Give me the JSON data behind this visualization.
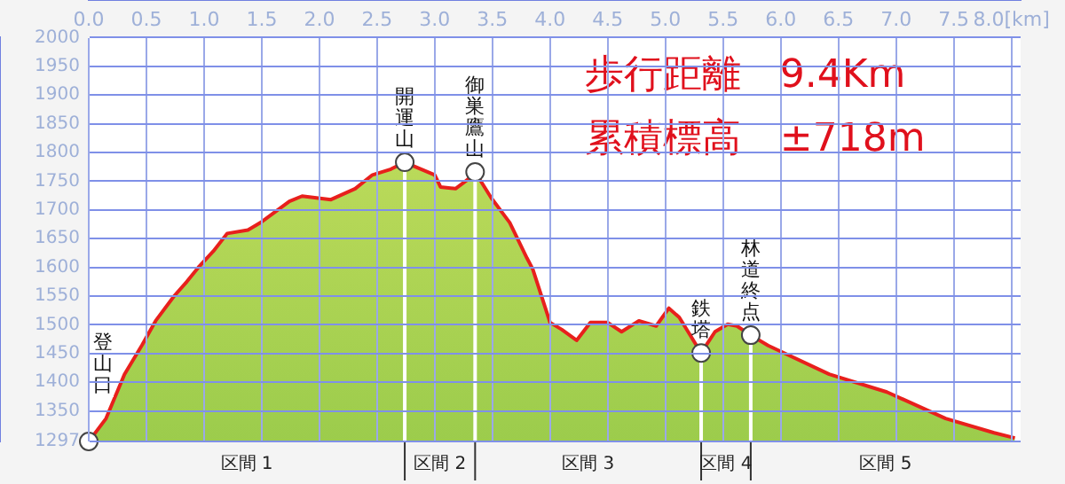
{
  "chart_data": {
    "type": "area",
    "title": "歩行距離　9.4Km",
    "subtitle": "累積標高　±718m",
    "x": [
      0,
      0.15,
      0.31,
      0.46,
      0.58,
      0.74,
      0.85,
      0.95,
      1.08,
      1.2,
      1.38,
      1.49,
      1.74,
      1.85,
      2.1,
      2.31,
      2.46,
      2.62,
      2.74,
      3.0,
      3.05,
      3.18,
      3.28,
      3.35,
      3.49,
      3.65,
      3.8,
      3.85,
      4.0,
      4.1,
      4.23,
      4.35,
      4.5,
      4.62,
      4.77,
      4.92,
      5.03,
      5.12,
      5.31,
      5.43,
      5.54,
      5.62,
      5.74,
      5.89,
      6.42,
      6.92,
      7.43,
      7.85,
      8.03
    ],
    "series": [
      {
        "color": "#e8201c",
        "values": [
          1297,
          1337,
          1414,
          1464,
          1507,
          1550,
          1575,
          1600,
          1628,
          1659,
          1665,
          1678,
          1715,
          1724,
          1718,
          1737,
          1761,
          1771,
          1783,
          1761,
          1740,
          1737,
          1752,
          1766,
          1721,
          1678,
          1616,
          1597,
          1504,
          1492,
          1473,
          1504,
          1504,
          1488,
          1507,
          1498,
          1529,
          1513,
          1451,
          1488,
          1501,
          1498,
          1482,
          1464,
          1414,
          1383,
          1337,
          1312,
          1303
        ]
      }
    ],
    "xlim": [
      0,
      8.08
    ],
    "xticks": [
      {
        "value": 0,
        "label": "0.0"
      },
      {
        "value": 0.5,
        "label": "0.5"
      },
      {
        "value": 1,
        "label": "1.0"
      },
      1.5,
      {
        "value": 2,
        "label": "2.0"
      },
      2.5,
      {
        "value": 3,
        "label": "3.0"
      },
      3.5,
      {
        "value": 4,
        "label": "4.0"
      },
      4.5,
      {
        "value": 5,
        "label": "5.0"
      },
      5.5,
      {
        "value": 6,
        "label": "6.0"
      },
      6.5,
      {
        "value": 7,
        "label": "7.0"
      },
      7.5,
      {
        "value": 8,
        "label": "8.0[km]"
      }
    ],
    "ylim": [
      1297,
      2000
    ],
    "yticks": [
      1297,
      1350,
      1400,
      1450,
      1500,
      1550,
      1600,
      1650,
      1700,
      1750,
      1800,
      1850,
      1900,
      1950,
      2000
    ],
    "grid": true,
    "legend": false,
    "ref_lines": [
      {
        "axis": "x",
        "value": 2.74,
        "color": "#ffffff"
      },
      {
        "axis": "x",
        "value": 3.35,
        "color": "#ffffff"
      },
      {
        "axis": "x",
        "value": 5.31,
        "color": "#ffffff"
      },
      {
        "axis": "x",
        "value": 5.74,
        "color": "#ffffff"
      }
    ],
    "annotations": [
      {
        "text": "登山口",
        "x": 0,
        "y": 1297
      },
      {
        "text": "開運山",
        "x": 2.74,
        "y": 1783
      },
      {
        "text": "御巣鷹山",
        "x": 3.35,
        "y": 1766
      },
      {
        "text": "鉄塔",
        "x": 5.31,
        "y": 1451
      },
      {
        "text": "林道終点",
        "x": 5.74,
        "y": 1482
      },
      "区間 1",
      "区間 2",
      "区間 3",
      "区間 4",
      "区間 5"
    ]
  }
}
